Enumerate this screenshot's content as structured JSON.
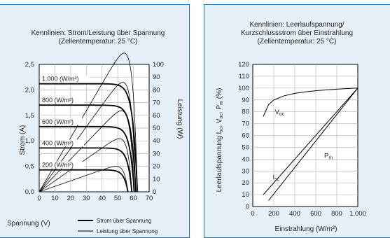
{
  "chart_data": [
    {
      "type": "line",
      "title_lines": [
        "Kennlinien: Strom/Leistung über Spannung",
        "(Zellentemperatur: 25 °C)"
      ],
      "xlabel": "Spannung (V)",
      "ylabel_left": "Strom (A)",
      "ylabel_right": "Leistung (W)",
      "xlim": [
        0,
        70
      ],
      "ylim_left": [
        0,
        2.5
      ],
      "ylim_right": [
        0,
        100
      ],
      "x_ticks": [
        "0",
        "10",
        "20",
        "30",
        "40",
        "50",
        "60",
        "70"
      ],
      "y_ticks_left": [
        "0,0",
        "0,5",
        "1,0",
        "1,5",
        "2,0",
        "2,5"
      ],
      "y_ticks_right": [
        "0",
        "10",
        "20",
        "30",
        "40",
        "50",
        "60",
        "70",
        "80",
        "90",
        "100"
      ],
      "legend": [
        {
          "label": "Strom über Spannung",
          "style": "thick"
        },
        {
          "label": "Leistung über Spannung",
          "style": "thin"
        }
      ],
      "series": [
        {
          "name": "1.000 (W/m²)",
          "label_display": "1.000 (W/m²)",
          "isc": 2.12,
          "voc": 62.5,
          "pmax_w": 93,
          "vmp": 48
        },
        {
          "name": "800 (W/m²)",
          "label_display": "800 (W/m²)",
          "isc": 1.7,
          "voc": 61.5,
          "pmax_w": 74,
          "vmp": 47.5
        },
        {
          "name": "600 (W/m²)",
          "label_display": "600 (W/m²)",
          "isc": 1.28,
          "voc": 60.5,
          "pmax_w": 55,
          "vmp": 46.5
        },
        {
          "name": "400 (W/m²)",
          "label_display": "400 (W/m²)",
          "isc": 0.86,
          "voc": 59,
          "pmax_w": 36,
          "vmp": 45
        },
        {
          "name": "200 (W/m²)",
          "label_display": "200 (W/m²)",
          "isc": 0.43,
          "voc": 56.5,
          "pmax_w": 17,
          "vmp": 43
        }
      ]
    },
    {
      "type": "line",
      "title_lines": [
        "Kennlinien: Leerlaufspannung/",
        "Kurzschlussstrom über Einstrahlung",
        "(Zellentemperatur: 25 °C)"
      ],
      "xlabel": "Einstrahlung (W/m²)",
      "ylabel": "Leerlaufspannung Isc, Voc, Pm (%)",
      "xlim": [
        0,
        1000
      ],
      "ylim": [
        0,
        120
      ],
      "x_ticks": [
        "0",
        "200",
        "400",
        "600",
        "800",
        "1.000"
      ],
      "y_ticks": [
        "0",
        "10",
        "20",
        "30",
        "40",
        "50",
        "60",
        "70",
        "80",
        "90",
        "100",
        "110",
        "120"
      ],
      "series": [
        {
          "name": "Voc",
          "x": [
            100,
            150,
            200,
            300,
            400,
            500,
            600,
            700,
            800,
            900,
            1000
          ],
          "y": [
            76,
            86,
            90,
            93.5,
            95.5,
            96.8,
            97.8,
            98.5,
            99.1,
            99.6,
            100
          ]
        },
        {
          "name": "Pm",
          "x": [
            100,
            1000
          ],
          "y": [
            10,
            100
          ]
        },
        {
          "name": "Isc",
          "x": [
            150,
            1000
          ],
          "y": [
            5,
            100
          ]
        }
      ],
      "annotations": [
        {
          "text": "V",
          "sub": "oc"
        },
        {
          "text": "P",
          "sub": "m"
        },
        {
          "text": "I",
          "sub": "sc"
        }
      ]
    }
  ]
}
